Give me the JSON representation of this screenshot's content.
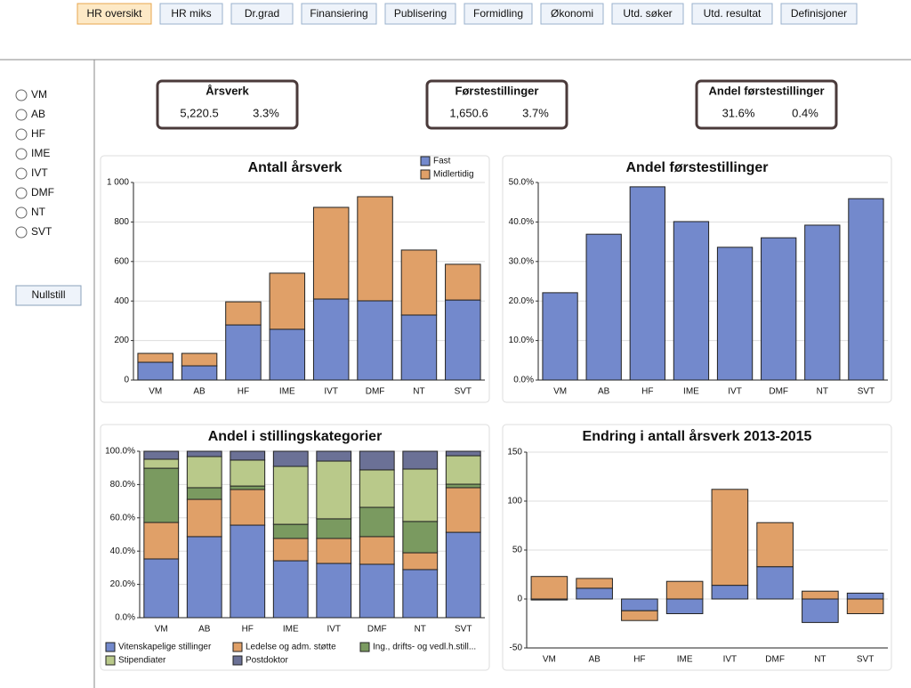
{
  "tabs": [
    "HR oversikt",
    "HR miks",
    "Dr.grad",
    "Finansiering",
    "Publisering",
    "Formidling",
    "Økonomi",
    "Utd. søker",
    "Utd. resultat",
    "Definisjoner"
  ],
  "sidebar": {
    "options": [
      "VM",
      "AB",
      "HF",
      "IME",
      "IVT",
      "DMF",
      "NT",
      "SVT"
    ],
    "reset_button": "Nullstill"
  },
  "kpis": [
    {
      "title": "Årsverk",
      "value": "5,220.5",
      "change": "3.3%"
    },
    {
      "title": "Førstestillinger",
      "value": "1,650.6",
      "change": "3.7%"
    },
    {
      "title": "Andel førstestillinger",
      "value": "31.6%",
      "change": "0.4%"
    }
  ],
  "chart_data": [
    {
      "type": "bar",
      "title": "Antall årsverk",
      "stacked": true,
      "legend": "top-right",
      "grid": true,
      "categories": [
        "VM",
        "AB",
        "HF",
        "IME",
        "IVT",
        "DMF",
        "NT",
        "SVT"
      ],
      "series": [
        {
          "name": "Fast",
          "color": "#7389cc",
          "values": [
            90,
            72,
            279,
            257,
            410,
            401,
            329,
            405
          ]
        },
        {
          "name": "Midlertidig",
          "color": "#e0a068",
          "values": [
            45,
            63,
            117,
            284,
            464,
            527,
            329,
            181
          ]
        }
      ],
      "ylim": [
        0,
        1000
      ],
      "yticks": [
        0,
        200,
        400,
        600,
        800,
        {
          "value": 1000,
          "label": "1 000"
        }
      ]
    },
    {
      "type": "bar",
      "title": "Andel førstestillinger",
      "grid": true,
      "color": "#7389cc",
      "categories": [
        "VM",
        "AB",
        "HF",
        "IME",
        "IVT",
        "DMF",
        "NT",
        "SVT"
      ],
      "values": [
        22.1,
        36.9,
        48.9,
        40.1,
        33.6,
        36.0,
        39.2,
        45.9
      ],
      "ylim": [
        0,
        50
      ],
      "yticks": [
        {
          "value": 0,
          "label": "0.0%"
        },
        {
          "value": 10,
          "label": "10.0%"
        },
        {
          "value": 20,
          "label": "20.0%"
        },
        {
          "value": 30,
          "label": "30.0%"
        },
        {
          "value": 40,
          "label": "40.0%"
        },
        {
          "value": 50,
          "label": "50.0%"
        }
      ]
    },
    {
      "type": "bar",
      "title": "Andel i stillingskategorier",
      "stacked": true,
      "legend": "bottom",
      "grid": true,
      "categories": [
        "VM",
        "AB",
        "HF",
        "IME",
        "IVT",
        "DMF",
        "NT",
        "SVT"
      ],
      "series": [
        {
          "name": "Vitenskapelige stillinger",
          "color": "#7389cc",
          "values": [
            35.3,
            48.7,
            55.6,
            34.2,
            32.6,
            32.1,
            28.9,
            51.3
          ]
        },
        {
          "name": "Ledelse og adm. støtte",
          "color": "#e0a068",
          "values": [
            21.9,
            22.4,
            21.4,
            13.4,
            15.0,
            16.6,
            10.1,
            26.8
          ]
        },
        {
          "name": "Ing., drifts- og vedl.h.still...",
          "color": "#7a9a60",
          "values": [
            32.6,
            7.0,
            2.1,
            8.5,
            11.8,
            17.6,
            18.8,
            2.1
          ]
        },
        {
          "name": "Stipendiater",
          "color": "#b9c98a",
          "values": [
            5.4,
            18.7,
            15.6,
            34.8,
            34.7,
            22.5,
            31.5,
            17.1
          ]
        },
        {
          "name": "Postdoktor",
          "color": "#6b7196",
          "values": [
            4.8,
            3.2,
            5.3,
            9.1,
            5.9,
            11.2,
            10.7,
            2.7
          ]
        }
      ],
      "ylim": [
        0,
        100
      ],
      "yticks": [
        {
          "value": 0,
          "label": "0.0%"
        },
        {
          "value": 20,
          "label": "20.0%"
        },
        {
          "value": 40,
          "label": "40.0%"
        },
        {
          "value": 60,
          "label": "60.0%"
        },
        {
          "value": 80,
          "label": "80.0%"
        },
        {
          "value": 100,
          "label": "100.0%"
        }
      ]
    },
    {
      "type": "bar",
      "title": "Endring i antall årsverk 2013-2015",
      "stacked": true,
      "grid": true,
      "categories": [
        "VM",
        "AB",
        "HF",
        "IME",
        "IVT",
        "DMF",
        "NT",
        "SVT"
      ],
      "series": [
        {
          "color": "#7389cc",
          "values": [
            -1,
            11,
            -12,
            -15,
            14,
            33,
            -24,
            6
          ]
        },
        {
          "color": "#e0a068",
          "values": [
            23,
            10,
            -10,
            18,
            98,
            45,
            8,
            -15
          ]
        }
      ],
      "ylim": [
        -50,
        150
      ],
      "yticks": [
        -50,
        0,
        50,
        100,
        150
      ]
    }
  ]
}
